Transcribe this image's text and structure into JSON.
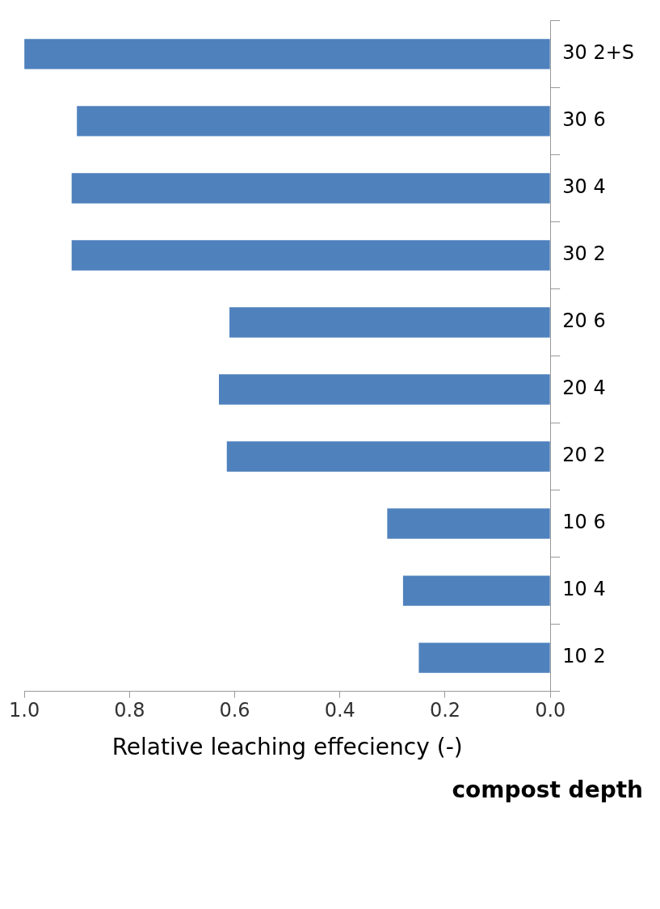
{
  "chart_data": {
    "type": "bar",
    "orientation": "horizontal",
    "xlabel": "Relative leaching effeciency (-)",
    "annotations": [
      "compost depth"
    ],
    "categories": [
      "30 2+S",
      "30 6",
      "30 4",
      "30 2",
      "20 6",
      "20 4",
      "20 2",
      "10 6",
      "10 4",
      "10 2"
    ],
    "values": [
      1.0,
      0.9,
      0.91,
      0.91,
      0.61,
      0.63,
      0.615,
      0.31,
      0.28,
      0.25
    ],
    "color": "#4f81bd",
    "xlim": [
      1,
      0
    ],
    "xticks": [
      {
        "value": 1,
        "label": "1.0"
      },
      0.8,
      0.6,
      0.4,
      0.2,
      {
        "value": 0,
        "label": "0.0"
      }
    ]
  }
}
